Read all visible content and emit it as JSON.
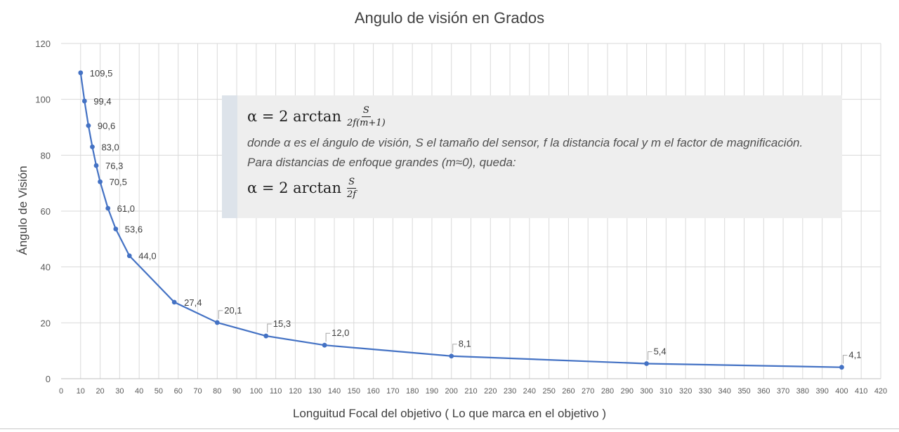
{
  "chart_data": {
    "type": "line",
    "title": "Angulo de visión en Grados",
    "xlabel": "Longuitud Focal del objetivo ( Lo que marca en el objetivo )",
    "ylabel": "Ángulo de Visión",
    "xlim": [
      0,
      420
    ],
    "ylim": [
      0,
      120
    ],
    "x_ticks": [
      0,
      10,
      20,
      30,
      40,
      50,
      60,
      70,
      80,
      90,
      100,
      110,
      120,
      130,
      140,
      150,
      160,
      170,
      180,
      190,
      200,
      210,
      220,
      230,
      240,
      250,
      260,
      270,
      280,
      290,
      300,
      310,
      320,
      330,
      340,
      350,
      360,
      370,
      380,
      390,
      400,
      410,
      420
    ],
    "y_ticks": [
      0,
      20,
      40,
      60,
      80,
      100,
      120
    ],
    "grid": true,
    "series": [
      {
        "color": "#4472c4",
        "x": [
          10,
          12,
          14,
          16,
          18,
          20,
          24,
          28,
          35,
          58,
          80,
          105,
          135,
          200,
          300,
          400
        ],
        "y": [
          109.5,
          99.4,
          90.6,
          83.0,
          76.3,
          70.5,
          61.0,
          53.6,
          44.0,
          27.4,
          20.1,
          15.3,
          12.0,
          8.1,
          5.4,
          4.1
        ],
        "labels": [
          "109,5",
          "99,4",
          "90,6",
          "83,0",
          "76,3",
          "70,5",
          "61,0",
          "53,6",
          "44,0",
          "27,4",
          "20,1",
          "15,3",
          "12,0",
          "8,1",
          "5,4",
          "4,1"
        ]
      }
    ]
  },
  "note": {
    "formula1_lhs": "α = 2 arctan",
    "formula1_num": "S",
    "formula1_den": "2f(m+1)",
    "text": "donde α es el ángulo de visión, S el tamaño del sensor, f la distancia focal y m el factor de magnificación. Para distancias de enfoque grandes (m≈0), queda:",
    "formula2_lhs": "α = 2 arctan",
    "formula2_num": "S",
    "formula2_den": "2f"
  }
}
